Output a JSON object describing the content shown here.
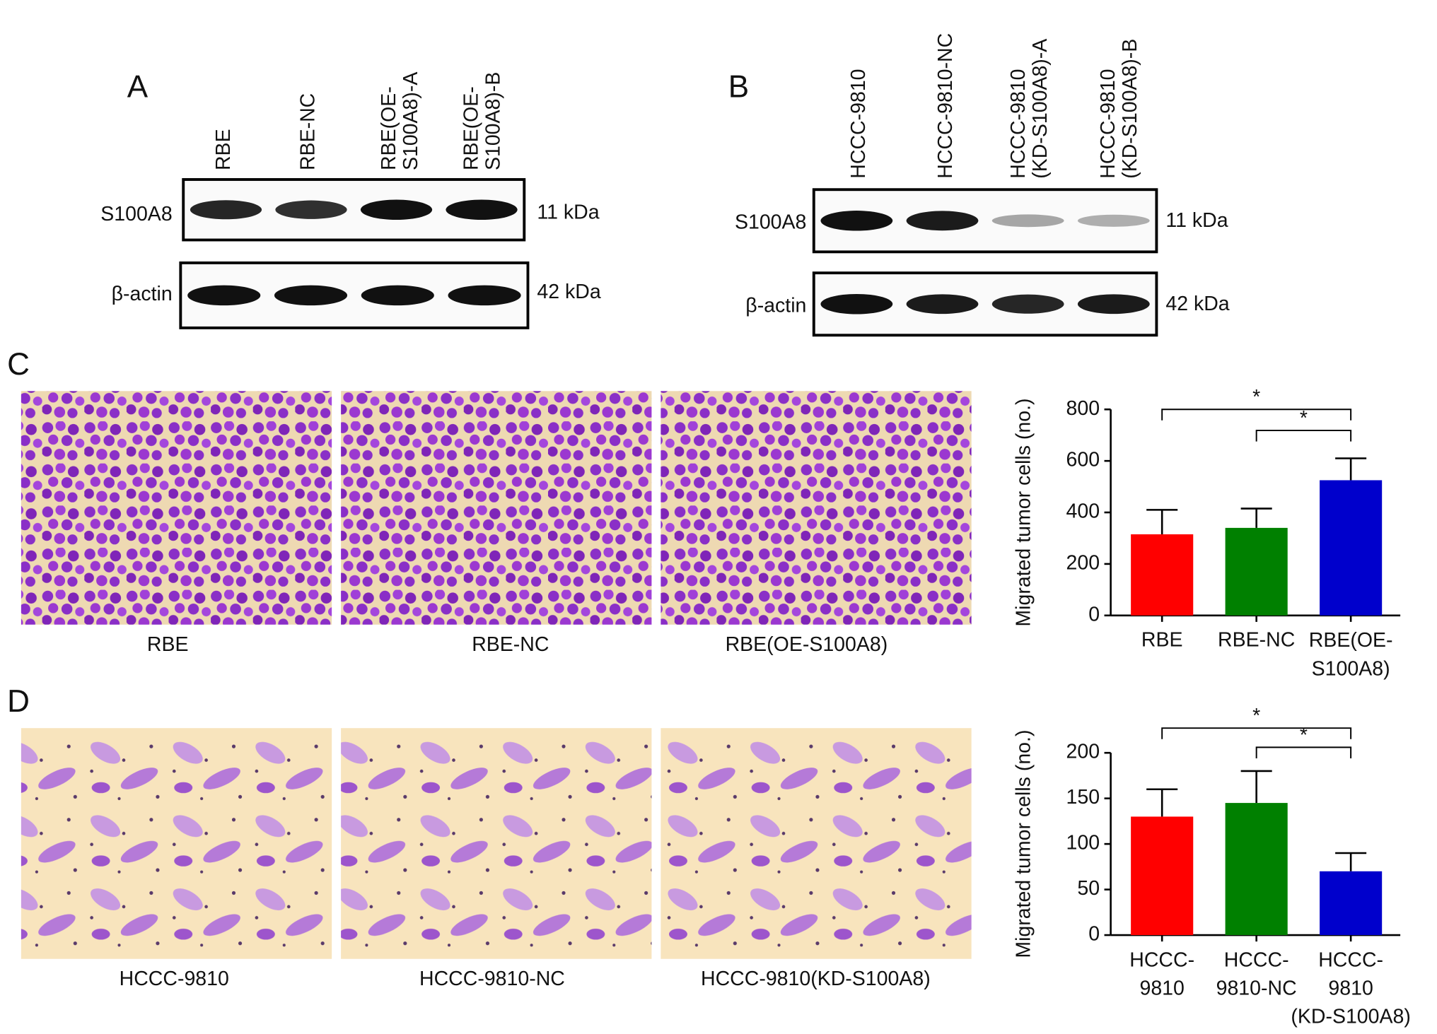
{
  "blots": [
    {
      "panel": "A",
      "lanes": [
        "RBE",
        "RBE-NC",
        "RBE(OE-\nS100A8)-A",
        "RBE(OE-\nS100A8)-B"
      ],
      "rows": [
        {
          "label": "S100A8",
          "size": "11 kDa"
        },
        {
          "label": "β-actin",
          "size": "42 kDa"
        }
      ]
    },
    {
      "panel": "B",
      "lanes": [
        "HCCC-9810",
        "HCCC-9810-NC",
        "HCCC-9810\n(KD-S100A8)-A",
        "HCCC-9810\n(KD-S100A8)-B"
      ],
      "rows": [
        {
          "label": "S100A8",
          "size": "11 kDa"
        },
        {
          "label": "β-actin",
          "size": "42 kDa"
        }
      ]
    }
  ],
  "micrographs": [
    {
      "panel": "C",
      "captions": [
        "RBE",
        "RBE-NC",
        "RBE(OE-S100A8)"
      ]
    },
    {
      "panel": "D",
      "captions": [
        "HCCC-9810",
        "HCCC-9810-NC",
        "HCCC-9810(KD-S100A8)"
      ]
    }
  ],
  "chart_data": [
    {
      "type": "bar",
      "y_label": "Migrated tumor cells (no.)",
      "categories": [
        "RBE",
        "RBE-NC",
        "RBE(OE-\nS100A8)"
      ],
      "values": [
        315,
        340,
        525
      ],
      "errors": [
        95,
        75,
        85
      ],
      "colors": [
        "#ff0000",
        "#008000",
        "#0000cc"
      ],
      "ylim": [
        0,
        800
      ],
      "yticks": [
        0,
        200,
        400,
        600,
        800
      ],
      "significance": [
        {
          "between": [
            0,
            2
          ],
          "label": "*"
        },
        {
          "between": [
            1,
            2
          ],
          "label": "*"
        }
      ]
    },
    {
      "type": "bar",
      "y_label": "Migrated tumor cells (no.)",
      "categories": [
        "HCCC-\n9810",
        "HCCC-\n9810-NC",
        "HCCC-\n9810\n(KD-S100A8)"
      ],
      "values": [
        130,
        145,
        70
      ],
      "errors": [
        30,
        35,
        20
      ],
      "colors": [
        "#ff0000",
        "#008000",
        "#0000cc"
      ],
      "ylim": [
        0,
        200
      ],
      "yticks": [
        0,
        50,
        100,
        150,
        200
      ],
      "significance": [
        {
          "between": [
            0,
            2
          ],
          "label": "*"
        },
        {
          "between": [
            1,
            2
          ],
          "label": "*"
        }
      ]
    }
  ]
}
